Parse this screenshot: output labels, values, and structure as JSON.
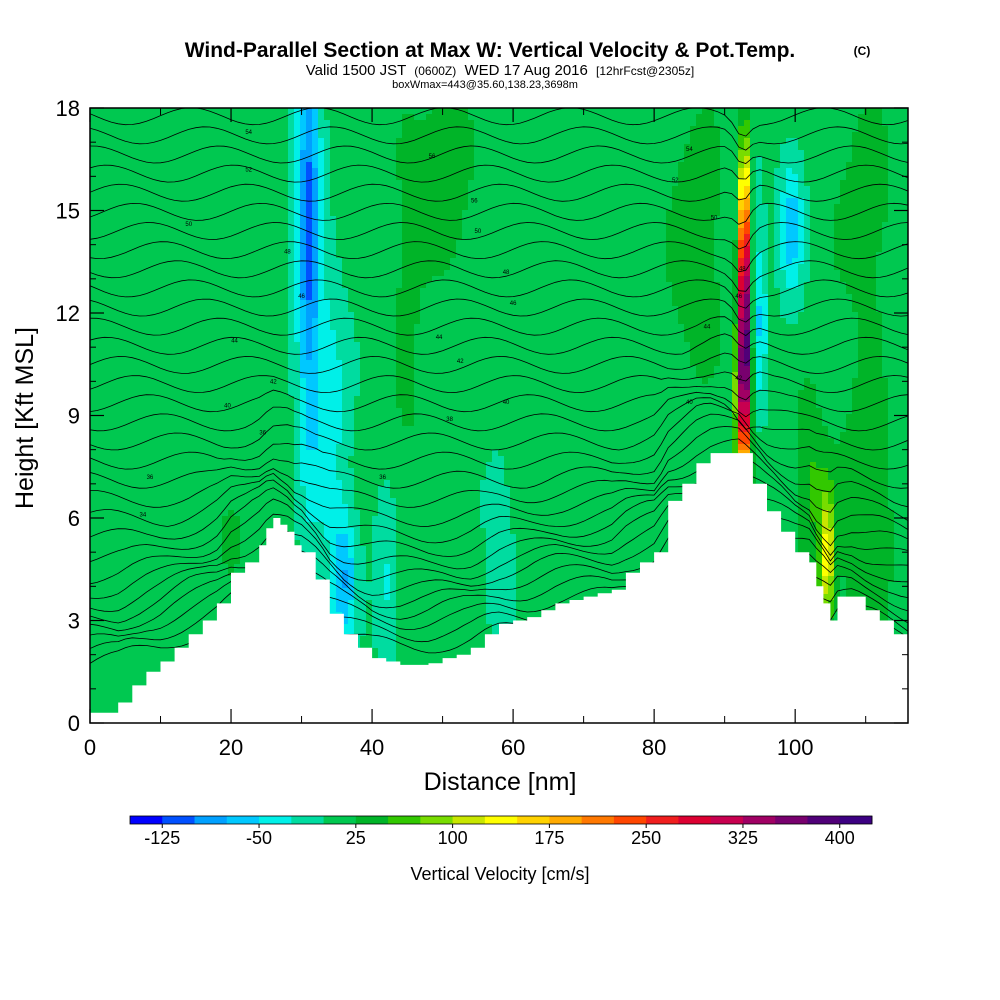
{
  "header": {
    "title": "Wind-Parallel Section at Max W: Vertical Velocity & Pot.Temp.",
    "copyright": "(C)",
    "valid_prefix": "Valid 1500 JST",
    "valid_utc": "(0600Z)",
    "valid_date": "WED 17 Aug 2016",
    "forecast": "[12hrFcst@2305z]",
    "box_info": "boxWmax=443@35.60,138.23,3698m"
  },
  "chart_data": {
    "type": "heatmap",
    "xlabel": "Distance [nm]",
    "ylabel": "Height [Kft MSL]",
    "xlim": [
      0,
      116
    ],
    "ylim": [
      0,
      18
    ],
    "x_ticks": [
      "0",
      "20",
      "40",
      "60",
      "80",
      "100"
    ],
    "y_ticks": [
      "0",
      "3",
      "6",
      "9",
      "12",
      "15",
      "18"
    ],
    "terrain_kft": [
      [
        0,
        0.3
      ],
      [
        4,
        0.6
      ],
      [
        6,
        1.1
      ],
      [
        8,
        1.5
      ],
      [
        10,
        1.8
      ],
      [
        12,
        2.2
      ],
      [
        14,
        2.6
      ],
      [
        16,
        3.0
      ],
      [
        18,
        3.5
      ],
      [
        20,
        4.4
      ],
      [
        22,
        4.7
      ],
      [
        24,
        5.2
      ],
      [
        25,
        5.7
      ],
      [
        26,
        6.0
      ],
      [
        27,
        5.8
      ],
      [
        28,
        5.6
      ],
      [
        29,
        5.2
      ],
      [
        30,
        5.0
      ],
      [
        32,
        4.2
      ],
      [
        34,
        3.2
      ],
      [
        36,
        2.6
      ],
      [
        38,
        2.2
      ],
      [
        40,
        1.9
      ],
      [
        42,
        1.8
      ],
      [
        44,
        1.7
      ],
      [
        46,
        1.7
      ],
      [
        48,
        1.75
      ],
      [
        50,
        1.9
      ],
      [
        52,
        2.0
      ],
      [
        54,
        2.2
      ],
      [
        56,
        2.6
      ],
      [
        58,
        2.9
      ],
      [
        60,
        3.0
      ],
      [
        62,
        3.1
      ],
      [
        64,
        3.3
      ],
      [
        66,
        3.5
      ],
      [
        68,
        3.6
      ],
      [
        70,
        3.7
      ],
      [
        72,
        3.8
      ],
      [
        74,
        3.9
      ],
      [
        76,
        4.4
      ],
      [
        78,
        4.7
      ],
      [
        80,
        5.0
      ],
      [
        82,
        6.5
      ],
      [
        84,
        7.0
      ],
      [
        86,
        7.6
      ],
      [
        88,
        7.9
      ],
      [
        90,
        7.9
      ],
      [
        92,
        7.9
      ],
      [
        94,
        7.0
      ],
      [
        96,
        6.2
      ],
      [
        98,
        5.6
      ],
      [
        100,
        5.0
      ],
      [
        102,
        4.7
      ],
      [
        103,
        4.0
      ],
      [
        104,
        3.5
      ],
      [
        105,
        3.0
      ],
      [
        106,
        3.7
      ],
      [
        108,
        3.7
      ],
      [
        110,
        3.3
      ],
      [
        112,
        3.0
      ],
      [
        114,
        2.6
      ],
      [
        116,
        2.2
      ]
    ],
    "w_features": [
      {
        "x": 31,
        "y": 15.0,
        "sx": 1.2,
        "sy": 5.0,
        "amp": -115
      },
      {
        "x": 36,
        "y": 4.2,
        "sx": 1.3,
        "sy": 1.4,
        "amp": -75
      },
      {
        "x": 34,
        "y": 9.0,
        "sx": 1.8,
        "sy": 3.0,
        "amp": -45
      },
      {
        "x": 42,
        "y": 4.0,
        "sx": 1.2,
        "sy": 1.5,
        "amp": -40
      },
      {
        "x": 50,
        "y": 16.0,
        "sx": 3.0,
        "sy": 2.0,
        "amp": 40
      },
      {
        "x": 45,
        "y": 12.0,
        "sx": 1.5,
        "sy": 4.0,
        "amp": 25
      },
      {
        "x": 20,
        "y": 6.0,
        "sx": 2.5,
        "sy": 1.6,
        "amp": 22
      },
      {
        "x": 58,
        "y": 5.0,
        "sx": 1.3,
        "sy": 2.0,
        "amp": -30
      },
      {
        "x": 86,
        "y": 14.0,
        "sx": 3.0,
        "sy": 3.0,
        "amp": 35
      },
      {
        "x": 92.8,
        "y": 12.2,
        "sx": 0.5,
        "sy": 2.8,
        "amp": 420
      },
      {
        "x": 92.6,
        "y": 9.5,
        "sx": 0.8,
        "sy": 1.6,
        "amp": 170
      },
      {
        "x": 95,
        "y": 12.0,
        "sx": 0.7,
        "sy": 2.0,
        "amp": -60
      },
      {
        "x": 99.5,
        "y": 14.5,
        "sx": 1.2,
        "sy": 1.5,
        "amp": -70
      },
      {
        "x": 104.5,
        "y": 4.8,
        "sx": 0.8,
        "sy": 1.4,
        "amp": 120
      },
      {
        "x": 102,
        "y": 7.0,
        "sx": 1.5,
        "sy": 2.0,
        "amp": 45
      },
      {
        "x": 110,
        "y": 6.0,
        "sx": 3.0,
        "sy": 3.0,
        "amp": 38
      },
      {
        "x": 110,
        "y": 15.0,
        "sx": 3.5,
        "sy": 2.5,
        "amp": 28
      }
    ],
    "theta_labels": [
      {
        "x": 22.5,
        "y": 17.3,
        "text": "54"
      },
      {
        "x": 22.5,
        "y": 16.2,
        "text": "52"
      },
      {
        "x": 14,
        "y": 14.6,
        "text": "50"
      },
      {
        "x": 28,
        "y": 13.8,
        "text": "48"
      },
      {
        "x": 30,
        "y": 12.5,
        "text": "46"
      },
      {
        "x": 20.5,
        "y": 11.2,
        "text": "44"
      },
      {
        "x": 26,
        "y": 10.0,
        "text": "42"
      },
      {
        "x": 19.5,
        "y": 9.3,
        "text": "40"
      },
      {
        "x": 24.5,
        "y": 8.5,
        "text": "36"
      },
      {
        "x": 8.5,
        "y": 7.2,
        "text": "36"
      },
      {
        "x": 7.5,
        "y": 6.1,
        "text": "34"
      },
      {
        "x": 48.5,
        "y": 16.6,
        "text": "56"
      },
      {
        "x": 54.5,
        "y": 15.3,
        "text": "56"
      },
      {
        "x": 55,
        "y": 14.4,
        "text": "50"
      },
      {
        "x": 59,
        "y": 13.2,
        "text": "48"
      },
      {
        "x": 60,
        "y": 12.3,
        "text": "46"
      },
      {
        "x": 49.5,
        "y": 11.3,
        "text": "44"
      },
      {
        "x": 52.5,
        "y": 10.6,
        "text": "42"
      },
      {
        "x": 59,
        "y": 9.4,
        "text": "40"
      },
      {
        "x": 51,
        "y": 8.9,
        "text": "38"
      },
      {
        "x": 41.5,
        "y": 7.2,
        "text": "36"
      },
      {
        "x": 85,
        "y": 16.8,
        "text": "54"
      },
      {
        "x": 83,
        "y": 15.9,
        "text": "52"
      },
      {
        "x": 88.5,
        "y": 14.8,
        "text": "50"
      },
      {
        "x": 92.5,
        "y": 13.3,
        "text": "48"
      },
      {
        "x": 92,
        "y": 12.5,
        "text": "46"
      },
      {
        "x": 87.5,
        "y": 11.6,
        "text": "44"
      },
      {
        "x": 92,
        "y": 10.1,
        "text": "42"
      },
      {
        "x": 85,
        "y": 9.4,
        "text": "40"
      }
    ],
    "colorbar": {
      "label": "Vertical Velocity [cm/s]",
      "tick_labels": [
        "-125",
        "-50",
        "25",
        "100",
        "175",
        "250",
        "325",
        "400"
      ],
      "tick_values": [
        -125,
        -50,
        25,
        100,
        175,
        250,
        325,
        400
      ],
      "bounds": [
        -150,
        425
      ],
      "step": 25,
      "colors": [
        "#0000ff",
        "#0050ff",
        "#00a0ff",
        "#00c8ff",
        "#00f0e8",
        "#00dca0",
        "#00c850",
        "#00b428",
        "#32c800",
        "#78dc00",
        "#c8e600",
        "#ffff00",
        "#ffd200",
        "#ffaa00",
        "#ff7800",
        "#ff4600",
        "#f01e1e",
        "#dc0032",
        "#c80050",
        "#a00064",
        "#78006e",
        "#500078",
        "#3c0082"
      ]
    }
  }
}
